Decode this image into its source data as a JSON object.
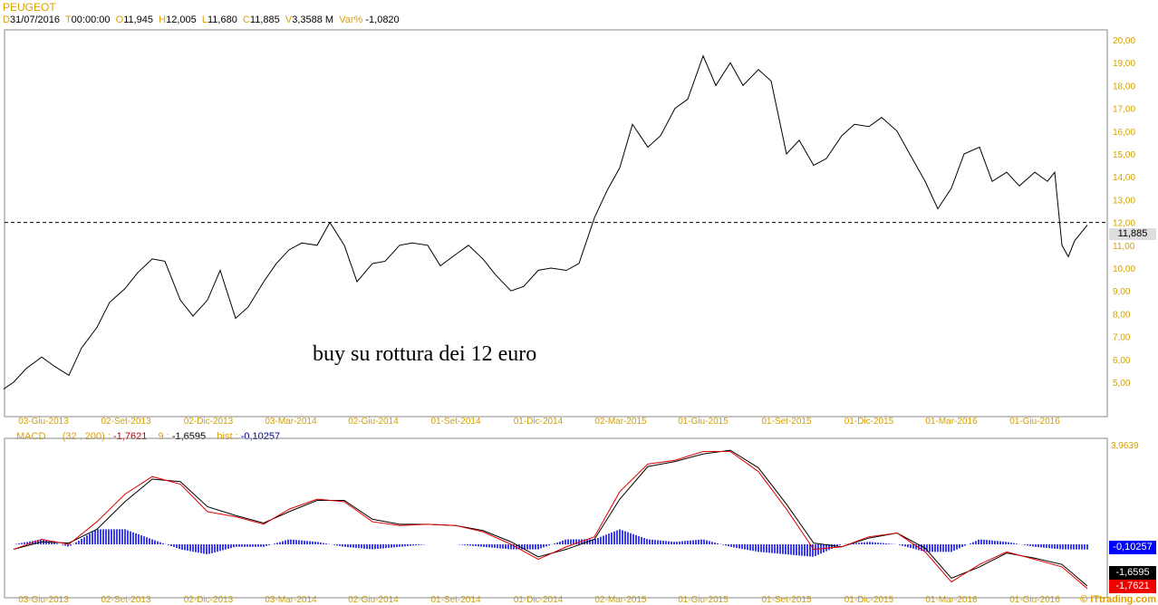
{
  "chart_data": [
    {
      "type": "line",
      "title": "PEUGEOT",
      "ohlc": {
        "D_label": "D",
        "date": "31/07/2016",
        "T_label": "T",
        "time": "00:00:00",
        "O_label": "O",
        "open": "11,945",
        "H_label": "H",
        "high": "12,005",
        "L_label": "L",
        "low": "11,680",
        "C_label": "C",
        "close": "11,885",
        "V_label": "V",
        "volume": "3,3588 M",
        "Var_label": "Var%",
        "var": "-1,0820"
      },
      "ylim": [
        4,
        20.5
      ],
      "yticks": [
        "5,00",
        "6,00",
        "7,00",
        "8,00",
        "9,00",
        "10,00",
        "11,00",
        "12,00",
        "13,00",
        "14,00",
        "15,00",
        "16,00",
        "17,00",
        "18,00",
        "19,00",
        "20,00"
      ],
      "xticks": [
        [
          "2013-06-03",
          "03-Giu-2013"
        ],
        [
          "2013-09-02",
          "02-Set-2013"
        ],
        [
          "2013-12-02",
          "02-Dic-2013"
        ],
        [
          "2014-03-03",
          "03-Mar-2014"
        ],
        [
          "2014-06-02",
          "02-Giu-2014"
        ],
        [
          "2014-09-01",
          "01-Set-2014"
        ],
        [
          "2014-12-01",
          "01-Dic-2014"
        ],
        [
          "2015-03-02",
          "02-Mar-2015"
        ],
        [
          "2015-06-01",
          "01-Giu-2015"
        ],
        [
          "2015-09-01",
          "01-Set-2015"
        ],
        [
          "2015-12-01",
          "01-Dic-2015"
        ],
        [
          "2016-03-01",
          "01-Mar-2016"
        ],
        [
          "2016-06-01",
          "01-Giu-2016"
        ]
      ],
      "horizontal_line": 12,
      "last_value_label": "11,885",
      "annotation": "buy su rottura dei 12 euro",
      "color": "#000000",
      "points": [
        [
          "2013-04-20",
          4.7
        ],
        [
          "2013-05-01",
          5.0
        ],
        [
          "2013-05-15",
          5.6
        ],
        [
          "2013-06-01",
          6.1
        ],
        [
          "2013-06-15",
          5.7
        ],
        [
          "2013-07-01",
          5.3
        ],
        [
          "2013-07-15",
          6.5
        ],
        [
          "2013-08-01",
          7.4
        ],
        [
          "2013-08-15",
          8.5
        ],
        [
          "2013-09-01",
          9.1
        ],
        [
          "2013-09-15",
          9.8
        ],
        [
          "2013-10-01",
          10.4
        ],
        [
          "2013-10-15",
          10.3
        ],
        [
          "2013-11-01",
          8.6
        ],
        [
          "2013-11-15",
          7.9
        ],
        [
          "2013-12-01",
          8.6
        ],
        [
          "2013-12-15",
          9.9
        ],
        [
          "2014-01-01",
          7.8
        ],
        [
          "2014-01-15",
          8.3
        ],
        [
          "2014-02-01",
          9.4
        ],
        [
          "2014-02-15",
          10.2
        ],
        [
          "2014-03-01",
          10.8
        ],
        [
          "2014-03-15",
          11.1
        ],
        [
          "2014-04-01",
          11.0
        ],
        [
          "2014-04-15",
          12.0
        ],
        [
          "2014-05-01",
          11.0
        ],
        [
          "2014-05-15",
          9.4
        ],
        [
          "2014-06-01",
          10.2
        ],
        [
          "2014-06-15",
          10.3
        ],
        [
          "2014-07-01",
          11.0
        ],
        [
          "2014-07-15",
          11.1
        ],
        [
          "2014-08-01",
          11.0
        ],
        [
          "2014-08-15",
          10.1
        ],
        [
          "2014-09-01",
          10.6
        ],
        [
          "2014-09-15",
          11.0
        ],
        [
          "2014-10-01",
          10.4
        ],
        [
          "2014-10-15",
          9.7
        ],
        [
          "2014-11-01",
          9.0
        ],
        [
          "2014-11-15",
          9.2
        ],
        [
          "2014-12-01",
          9.9
        ],
        [
          "2014-12-15",
          10.0
        ],
        [
          "2015-01-01",
          9.9
        ],
        [
          "2015-01-15",
          10.2
        ],
        [
          "2015-02-01",
          12.2
        ],
        [
          "2015-02-15",
          13.4
        ],
        [
          "2015-03-01",
          14.4
        ],
        [
          "2015-03-15",
          16.3
        ],
        [
          "2015-04-01",
          15.3
        ],
        [
          "2015-04-15",
          15.8
        ],
        [
          "2015-05-01",
          17.0
        ],
        [
          "2015-05-15",
          17.4
        ],
        [
          "2015-06-01",
          19.3
        ],
        [
          "2015-06-15",
          18.0
        ],
        [
          "2015-07-01",
          19.0
        ],
        [
          "2015-07-15",
          18.0
        ],
        [
          "2015-08-01",
          18.7
        ],
        [
          "2015-08-15",
          18.2
        ],
        [
          "2015-09-01",
          15.0
        ],
        [
          "2015-09-15",
          15.6
        ],
        [
          "2015-10-01",
          14.5
        ],
        [
          "2015-10-15",
          14.8
        ],
        [
          "2015-11-01",
          15.8
        ],
        [
          "2015-11-15",
          16.3
        ],
        [
          "2015-12-01",
          16.2
        ],
        [
          "2015-12-15",
          16.6
        ],
        [
          "2016-01-01",
          16.0
        ],
        [
          "2016-01-15",
          15.0
        ],
        [
          "2016-02-01",
          13.8
        ],
        [
          "2016-02-15",
          12.6
        ],
        [
          "2016-03-01",
          13.5
        ],
        [
          "2016-03-15",
          15.0
        ],
        [
          "2016-04-01",
          15.3
        ],
        [
          "2016-04-15",
          13.8
        ],
        [
          "2016-05-01",
          14.2
        ],
        [
          "2016-05-15",
          13.6
        ],
        [
          "2016-06-01",
          14.2
        ],
        [
          "2016-06-15",
          13.8
        ],
        [
          "2016-06-23",
          14.2
        ],
        [
          "2016-07-01",
          11.0
        ],
        [
          "2016-07-08",
          10.5
        ],
        [
          "2016-07-15",
          11.2
        ],
        [
          "2016-07-29",
          11.885
        ]
      ]
    },
    {
      "type": "line",
      "title": "MACD",
      "params": "(32 , 200) :",
      "macd_value": "-1,7621",
      "signal_label": "9 :",
      "signal_value": "-1,6595",
      "hist_label": "hist :",
      "hist_value": "-0,10257",
      "top_label": "3,9639",
      "ylim": [
        -1.9,
        4.0
      ],
      "colors": {
        "macd": "#e00000",
        "signal": "#000000",
        "hist": "#0000e0"
      },
      "dates": [
        "2013-05-01",
        "2013-06-01",
        "2013-07-01",
        "2013-08-01",
        "2013-09-01",
        "2013-10-01",
        "2013-11-01",
        "2013-12-01",
        "2014-01-01",
        "2014-02-01",
        "2014-03-01",
        "2014-04-01",
        "2014-05-01",
        "2014-06-01",
        "2014-07-01",
        "2014-08-01",
        "2014-09-01",
        "2014-10-01",
        "2014-11-01",
        "2014-12-01",
        "2015-01-01",
        "2015-02-01",
        "2015-03-01",
        "2015-04-01",
        "2015-05-01",
        "2015-06-01",
        "2015-07-01",
        "2015-08-01",
        "2015-09-01",
        "2015-10-01",
        "2015-11-01",
        "2015-12-01",
        "2016-01-01",
        "2016-02-01",
        "2016-03-01",
        "2016-04-01",
        "2016-05-01",
        "2016-06-01",
        "2016-07-01",
        "2016-07-29"
      ],
      "macd": [
        -0.2,
        0.2,
        0.0,
        0.9,
        2.0,
        2.7,
        2.4,
        1.3,
        1.1,
        0.8,
        1.4,
        1.8,
        1.7,
        0.9,
        0.75,
        0.8,
        0.75,
        0.5,
        0.0,
        -0.6,
        -0.1,
        0.3,
        2.1,
        3.2,
        3.35,
        3.7,
        3.7,
        2.9,
        1.4,
        -0.2,
        -0.1,
        0.3,
        0.45,
        -0.3,
        -1.5,
        -0.8,
        -0.3,
        -0.6,
        -0.9,
        -1.7621
      ],
      "signal": [
        -0.2,
        0.1,
        0.05,
        0.6,
        1.7,
        2.6,
        2.5,
        1.5,
        1.15,
        0.85,
        1.3,
        1.75,
        1.75,
        1.0,
        0.8,
        0.8,
        0.75,
        0.55,
        0.1,
        -0.5,
        -0.2,
        0.2,
        1.8,
        3.1,
        3.3,
        3.6,
        3.75,
        3.05,
        1.6,
        0.05,
        -0.1,
        0.25,
        0.45,
        -0.15,
        -1.35,
        -0.9,
        -0.35,
        -0.55,
        -0.8,
        -1.6595
      ],
      "footer": "© ITtrading.com"
    }
  ]
}
